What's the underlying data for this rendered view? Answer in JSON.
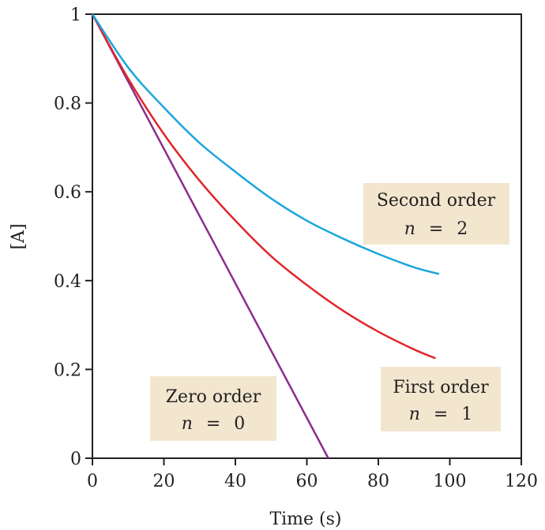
{
  "chart_data": {
    "type": "line",
    "xlabel": "Time (s)",
    "ylabel": "[A]",
    "xlim": [
      0,
      120
    ],
    "ylim": [
      0,
      1
    ],
    "xticks": [
      "0",
      "20",
      "40",
      "60",
      "80",
      "100",
      "120"
    ],
    "yticks": [
      "0",
      "0.2",
      "0.4",
      "0.6",
      "0.8",
      "1"
    ],
    "grid": false,
    "series": [
      {
        "label": "Zero order",
        "order": "0",
        "color": "#8b2d8c",
        "x": [
          0,
          66
        ],
        "y": [
          1.0,
          0.0
        ]
      },
      {
        "label": "First order",
        "order": "1",
        "color": "#e0262b",
        "x": [
          0,
          10,
          20,
          30,
          40,
          50,
          60,
          70,
          80,
          90,
          96
        ],
        "y": [
          1.0,
          0.855,
          0.73,
          0.625,
          0.535,
          0.455,
          0.39,
          0.333,
          0.285,
          0.245,
          0.225
        ]
      },
      {
        "label": "Second order",
        "order": "2",
        "color": "#1aa6dd",
        "x": [
          0,
          10,
          20,
          30,
          40,
          50,
          60,
          70,
          80,
          90,
          97
        ],
        "y": [
          1.0,
          0.88,
          0.79,
          0.71,
          0.645,
          0.585,
          0.535,
          0.495,
          0.46,
          0.43,
          0.415
        ]
      }
    ]
  },
  "annotations": [
    {
      "title": "Second order",
      "n_symbol": "n",
      "equals": "=",
      "n_value": "2",
      "bg": "#f2e6cf"
    },
    {
      "title": "First order",
      "n_symbol": "n",
      "equals": "=",
      "n_value": "1",
      "bg": "#f2e6cf"
    },
    {
      "title": "Zero order",
      "n_symbol": "n",
      "equals": "=",
      "n_value": "0",
      "bg": "#f2e6cf"
    }
  ]
}
